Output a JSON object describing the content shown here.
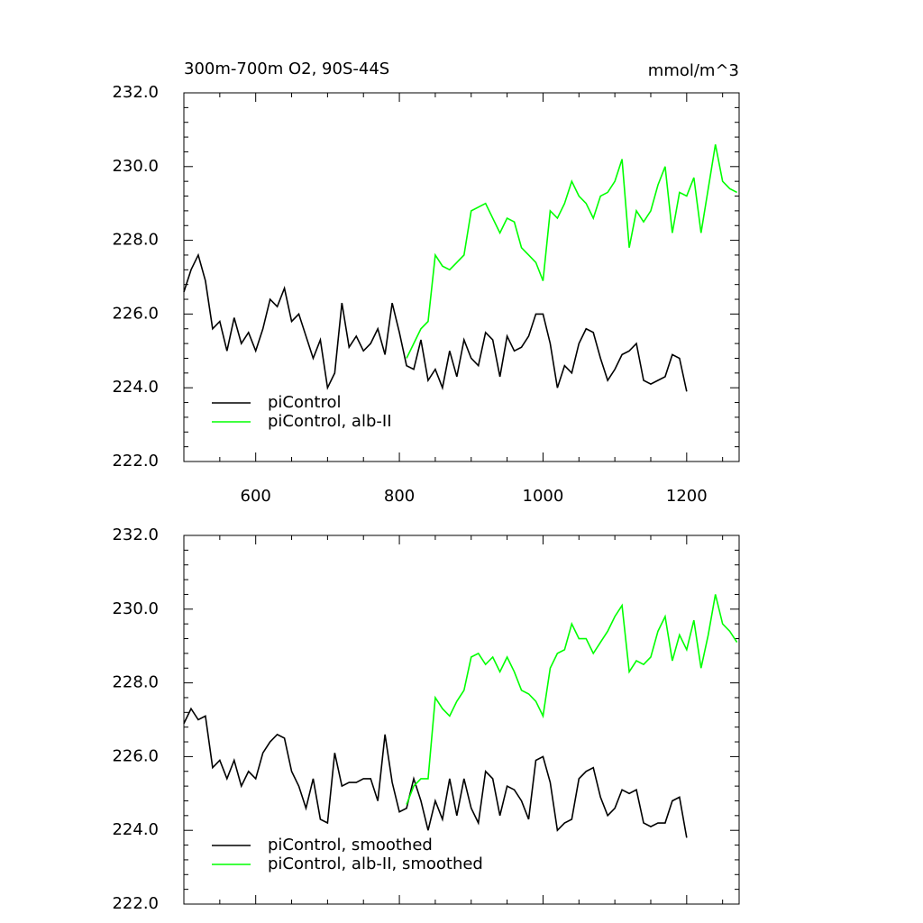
{
  "chart_data": [
    {
      "type": "line",
      "title": "300m-700m O2, 90S-44S",
      "units": "mmol/m^3",
      "xlim": [
        500,
        1273
      ],
      "xticks": [
        600,
        800,
        1000,
        1200
      ],
      "x_tick_labels": true,
      "ylim": [
        222,
        232
      ],
      "yticks": [
        {
          "value": 222,
          "label": "222.0"
        },
        {
          "value": 224,
          "label": "224.0"
        },
        {
          "value": 226,
          "label": "226.0"
        },
        {
          "value": 228,
          "label": "228.0"
        },
        {
          "value": 230,
          "label": "230.0"
        },
        {
          "value": 232,
          "label": "232.0"
        }
      ],
      "legend": "lower left",
      "series": [
        {
          "name": "piControl",
          "color": "#000000",
          "x": [
            500,
            510,
            520,
            530,
            540,
            550,
            560,
            570,
            580,
            590,
            600,
            610,
            620,
            630,
            640,
            650,
            660,
            670,
            680,
            690,
            700,
            710,
            720,
            730,
            740,
            750,
            760,
            770,
            780,
            790,
            800,
            810,
            820,
            830,
            840,
            850,
            860,
            870,
            880,
            890,
            900,
            910,
            920,
            930,
            940,
            950,
            960,
            970,
            980,
            990,
            1000,
            1010,
            1020,
            1030,
            1040,
            1050,
            1060,
            1070,
            1080,
            1090,
            1100,
            1110,
            1120,
            1130,
            1140,
            1150,
            1160,
            1170,
            1180,
            1190,
            1200
          ],
          "values": [
            226.6,
            227.2,
            227.6,
            226.9,
            225.6,
            225.8,
            225.0,
            225.9,
            225.2,
            225.5,
            225.0,
            225.6,
            226.4,
            226.2,
            226.7,
            225.8,
            226.0,
            225.4,
            224.8,
            225.3,
            224.0,
            224.4,
            226.3,
            225.1,
            225.4,
            225.0,
            225.2,
            225.6,
            224.9,
            226.3,
            225.5,
            224.6,
            224.5,
            225.3,
            224.2,
            224.5,
            224.0,
            225.0,
            224.3,
            225.3,
            224.8,
            224.6,
            225.5,
            225.3,
            224.3,
            225.4,
            225.0,
            225.1,
            225.4,
            226.0,
            226.0,
            225.2,
            224.0,
            224.6,
            224.4,
            225.2,
            225.6,
            225.5,
            224.8,
            224.2,
            224.5,
            224.9,
            225.0,
            225.2,
            224.2,
            224.1,
            224.2,
            224.3,
            224.9,
            224.8,
            223.9
          ]
        },
        {
          "name": "piControl, alb-II",
          "color": "#00ff00",
          "x": [
            810,
            820,
            830,
            840,
            850,
            860,
            870,
            880,
            890,
            900,
            910,
            920,
            930,
            940,
            950,
            960,
            970,
            980,
            990,
            1000,
            1010,
            1020,
            1030,
            1040,
            1050,
            1060,
            1070,
            1080,
            1090,
            1100,
            1110,
            1120,
            1130,
            1140,
            1150,
            1160,
            1170,
            1180,
            1190,
            1200,
            1210,
            1220,
            1230,
            1240,
            1250,
            1260,
            1270
          ],
          "values": [
            224.8,
            225.2,
            225.6,
            225.8,
            227.6,
            227.3,
            227.2,
            227.4,
            227.6,
            228.8,
            228.9,
            229.0,
            228.6,
            228.2,
            228.6,
            228.5,
            227.8,
            227.6,
            227.4,
            226.9,
            228.8,
            228.6,
            229.0,
            229.6,
            229.2,
            229.0,
            228.6,
            229.2,
            229.3,
            229.6,
            230.2,
            227.8,
            228.8,
            228.5,
            228.8,
            229.5,
            230.0,
            228.2,
            229.3,
            229.2,
            229.7,
            228.2,
            229.4,
            230.6,
            229.6,
            229.4,
            229.3
          ]
        }
      ]
    },
    {
      "type": "line",
      "xlim": [
        500,
        1273
      ],
      "xticks": [
        600,
        800,
        1000,
        1200
      ],
      "x_tick_labels": false,
      "ylim": [
        222,
        232
      ],
      "yticks": [
        {
          "value": 222,
          "label": "222.0"
        },
        {
          "value": 224,
          "label": "224.0"
        },
        {
          "value": 226,
          "label": "226.0"
        },
        {
          "value": 228,
          "label": "228.0"
        },
        {
          "value": 230,
          "label": "230.0"
        },
        {
          "value": 232,
          "label": "232.0"
        }
      ],
      "legend": "lower left",
      "series": [
        {
          "name": "piControl, smoothed",
          "color": "#000000",
          "x": [
            500,
            510,
            520,
            530,
            540,
            550,
            560,
            570,
            580,
            590,
            600,
            610,
            620,
            630,
            640,
            650,
            660,
            670,
            680,
            690,
            700,
            710,
            720,
            730,
            740,
            750,
            760,
            770,
            780,
            790,
            800,
            810,
            820,
            830,
            840,
            850,
            860,
            870,
            880,
            890,
            900,
            910,
            920,
            930,
            940,
            950,
            960,
            970,
            980,
            990,
            1000,
            1010,
            1020,
            1030,
            1040,
            1050,
            1060,
            1070,
            1080,
            1090,
            1100,
            1110,
            1120,
            1130,
            1140,
            1150,
            1160,
            1170,
            1180,
            1190,
            1200
          ],
          "values": [
            226.9,
            227.3,
            227.0,
            227.1,
            225.7,
            225.9,
            225.4,
            225.9,
            225.2,
            225.6,
            225.4,
            226.1,
            226.4,
            226.6,
            226.5,
            225.6,
            225.2,
            224.6,
            225.4,
            224.3,
            224.2,
            226.1,
            225.2,
            225.3,
            225.3,
            225.4,
            225.4,
            224.8,
            226.6,
            225.3,
            224.5,
            224.6,
            225.4,
            224.8,
            224.0,
            224.8,
            224.3,
            225.4,
            224.4,
            225.4,
            224.6,
            224.2,
            225.6,
            225.4,
            224.4,
            225.2,
            225.1,
            224.8,
            224.3,
            225.9,
            226.0,
            225.3,
            224.0,
            224.2,
            224.3,
            225.4,
            225.6,
            225.7,
            224.9,
            224.4,
            224.6,
            225.1,
            225.0,
            225.1,
            224.2,
            224.1,
            224.2,
            224.2,
            224.8,
            224.9,
            223.8
          ]
        },
        {
          "name": "piControl, alb-II, smoothed",
          "color": "#00ff00",
          "x": [
            810,
            820,
            830,
            840,
            850,
            860,
            870,
            880,
            890,
            900,
            910,
            920,
            930,
            940,
            950,
            960,
            970,
            980,
            990,
            1000,
            1010,
            1020,
            1030,
            1040,
            1050,
            1060,
            1070,
            1080,
            1090,
            1100,
            1110,
            1120,
            1130,
            1140,
            1150,
            1160,
            1170,
            1180,
            1190,
            1200,
            1210,
            1220,
            1230,
            1240,
            1250,
            1260,
            1270
          ],
          "values": [
            224.7,
            225.2,
            225.4,
            225.4,
            227.6,
            227.3,
            227.1,
            227.5,
            227.8,
            228.7,
            228.8,
            228.5,
            228.7,
            228.3,
            228.7,
            228.3,
            227.8,
            227.7,
            227.5,
            227.1,
            228.4,
            228.8,
            228.9,
            229.6,
            229.2,
            229.2,
            228.8,
            229.1,
            229.4,
            229.8,
            230.1,
            228.3,
            228.6,
            228.5,
            228.7,
            229.4,
            229.8,
            228.6,
            229.3,
            228.9,
            229.7,
            228.4,
            229.3,
            230.4,
            229.6,
            229.4,
            229.1
          ]
        }
      ]
    }
  ]
}
